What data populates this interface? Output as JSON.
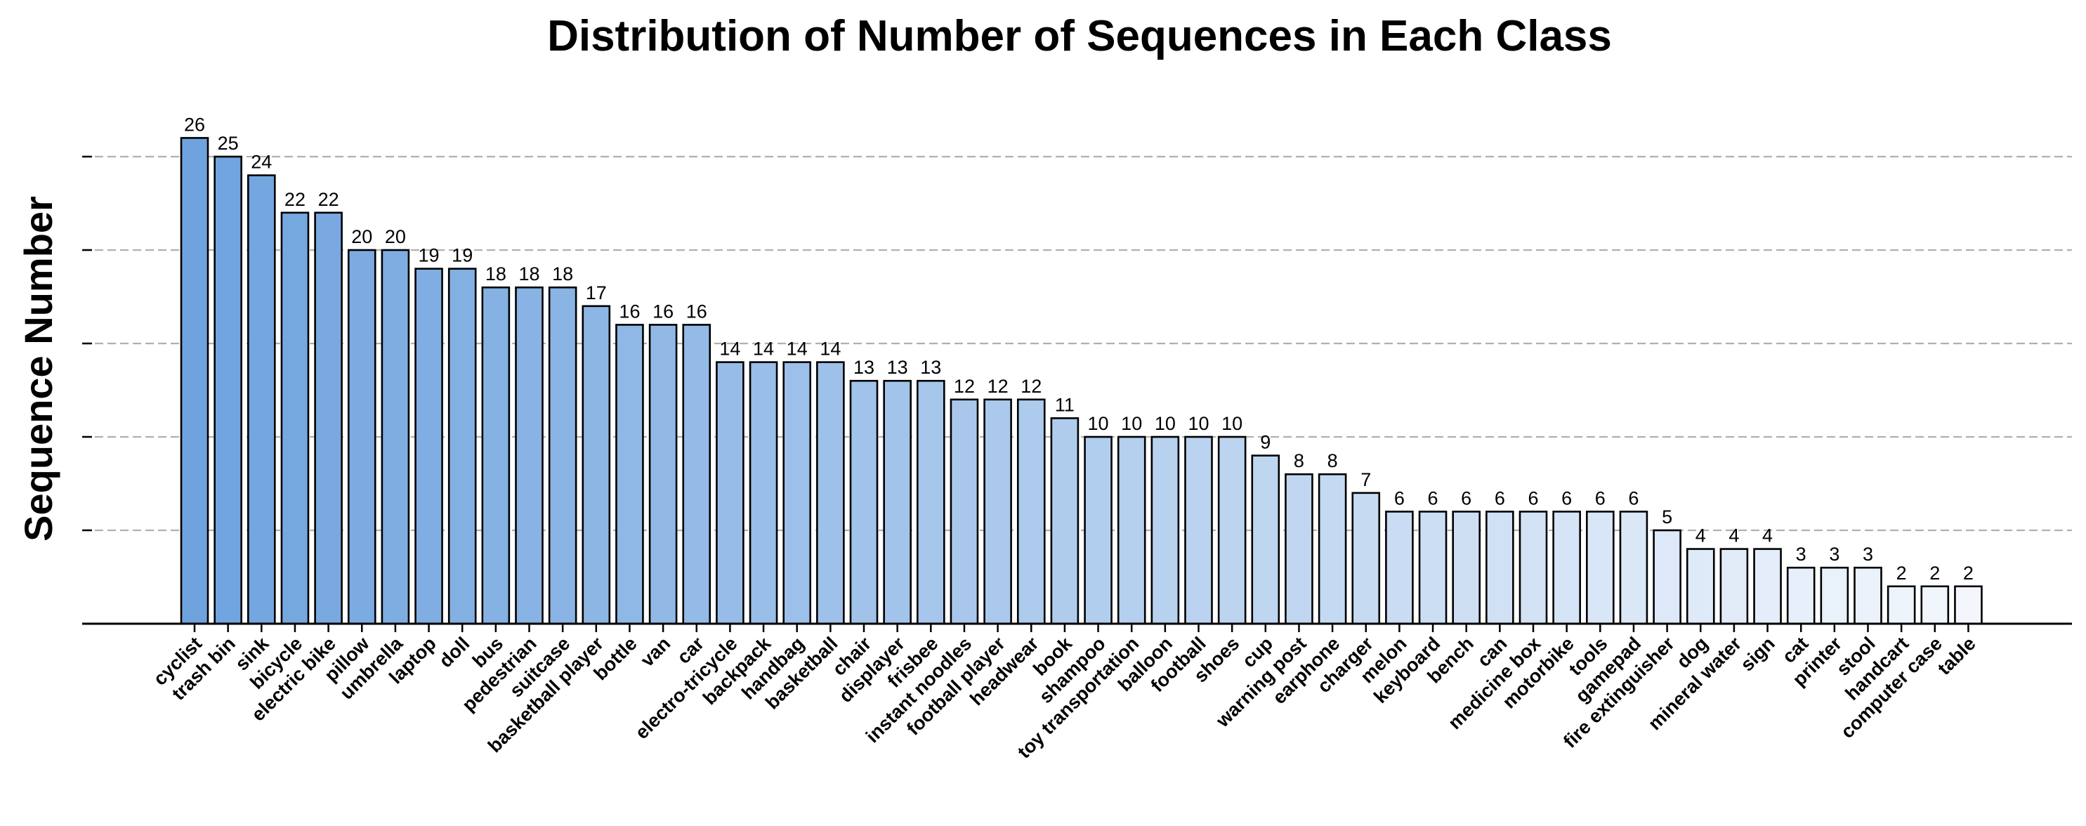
{
  "chart_data": {
    "type": "bar",
    "title": "Distribution of Number of Sequences in Each Class",
    "xlabel": "",
    "ylabel": "Sequence Number",
    "ylim": [
      0,
      27
    ],
    "y_ticks": [
      5,
      10,
      15,
      20,
      25
    ],
    "y_tick_labels_visible": false,
    "grid": "y-dashed",
    "color_gradient": [
      "#6fa3de",
      "#f3f7fd"
    ],
    "categories": [
      "cyclist",
      "trash bin",
      "sink",
      "bicycle",
      "electric bike",
      "pillow",
      "umbrella",
      "laptop",
      "doll",
      "bus",
      "pedestrian",
      "suitcase",
      "basketball player",
      "bottle",
      "van",
      "car",
      "electro-tricycle",
      "backpack",
      "handbag",
      "basketball",
      "chair",
      "displayer",
      "frisbee",
      "instant noodles",
      "football player",
      "headwear",
      "book",
      "shampoo",
      "toy transportation",
      "balloon",
      "football",
      "shoes",
      "cup",
      "warning post",
      "earphone",
      "charger",
      "melon",
      "keyboard",
      "bench",
      "can",
      "medicine box",
      "motorbike",
      "tools",
      "gamepad",
      "fire extinguisher",
      "dog",
      "mineral water",
      "sign",
      "cat",
      "printer",
      "stool",
      "handcart",
      "computer case",
      "table"
    ],
    "values": [
      26,
      25,
      24,
      22,
      22,
      20,
      20,
      19,
      19,
      18,
      18,
      18,
      17,
      16,
      16,
      16,
      14,
      14,
      14,
      14,
      13,
      13,
      13,
      12,
      12,
      12,
      11,
      10,
      10,
      10,
      10,
      10,
      9,
      8,
      8,
      7,
      6,
      6,
      6,
      6,
      6,
      6,
      6,
      6,
      5,
      4,
      4,
      4,
      3,
      3,
      3,
      2,
      2,
      2
    ],
    "value_labels": [
      "26",
      "25",
      "24",
      "22",
      "22",
      "20",
      "20",
      "19",
      "19",
      "18",
      "18",
      "18",
      "17",
      "16",
      "16",
      "16",
      "14",
      "14",
      "14",
      "14",
      "13",
      "13",
      "13",
      "12",
      "12",
      "12",
      "11",
      "10",
      "10",
      "10",
      "10",
      "10",
      "9",
      "8",
      "8",
      "7",
      "6",
      "6",
      "6",
      "6",
      "6",
      "6",
      "6",
      "6",
      "5",
      "4",
      "4",
      "4",
      "3",
      "3",
      "3",
      "2",
      "2",
      "2"
    ]
  }
}
